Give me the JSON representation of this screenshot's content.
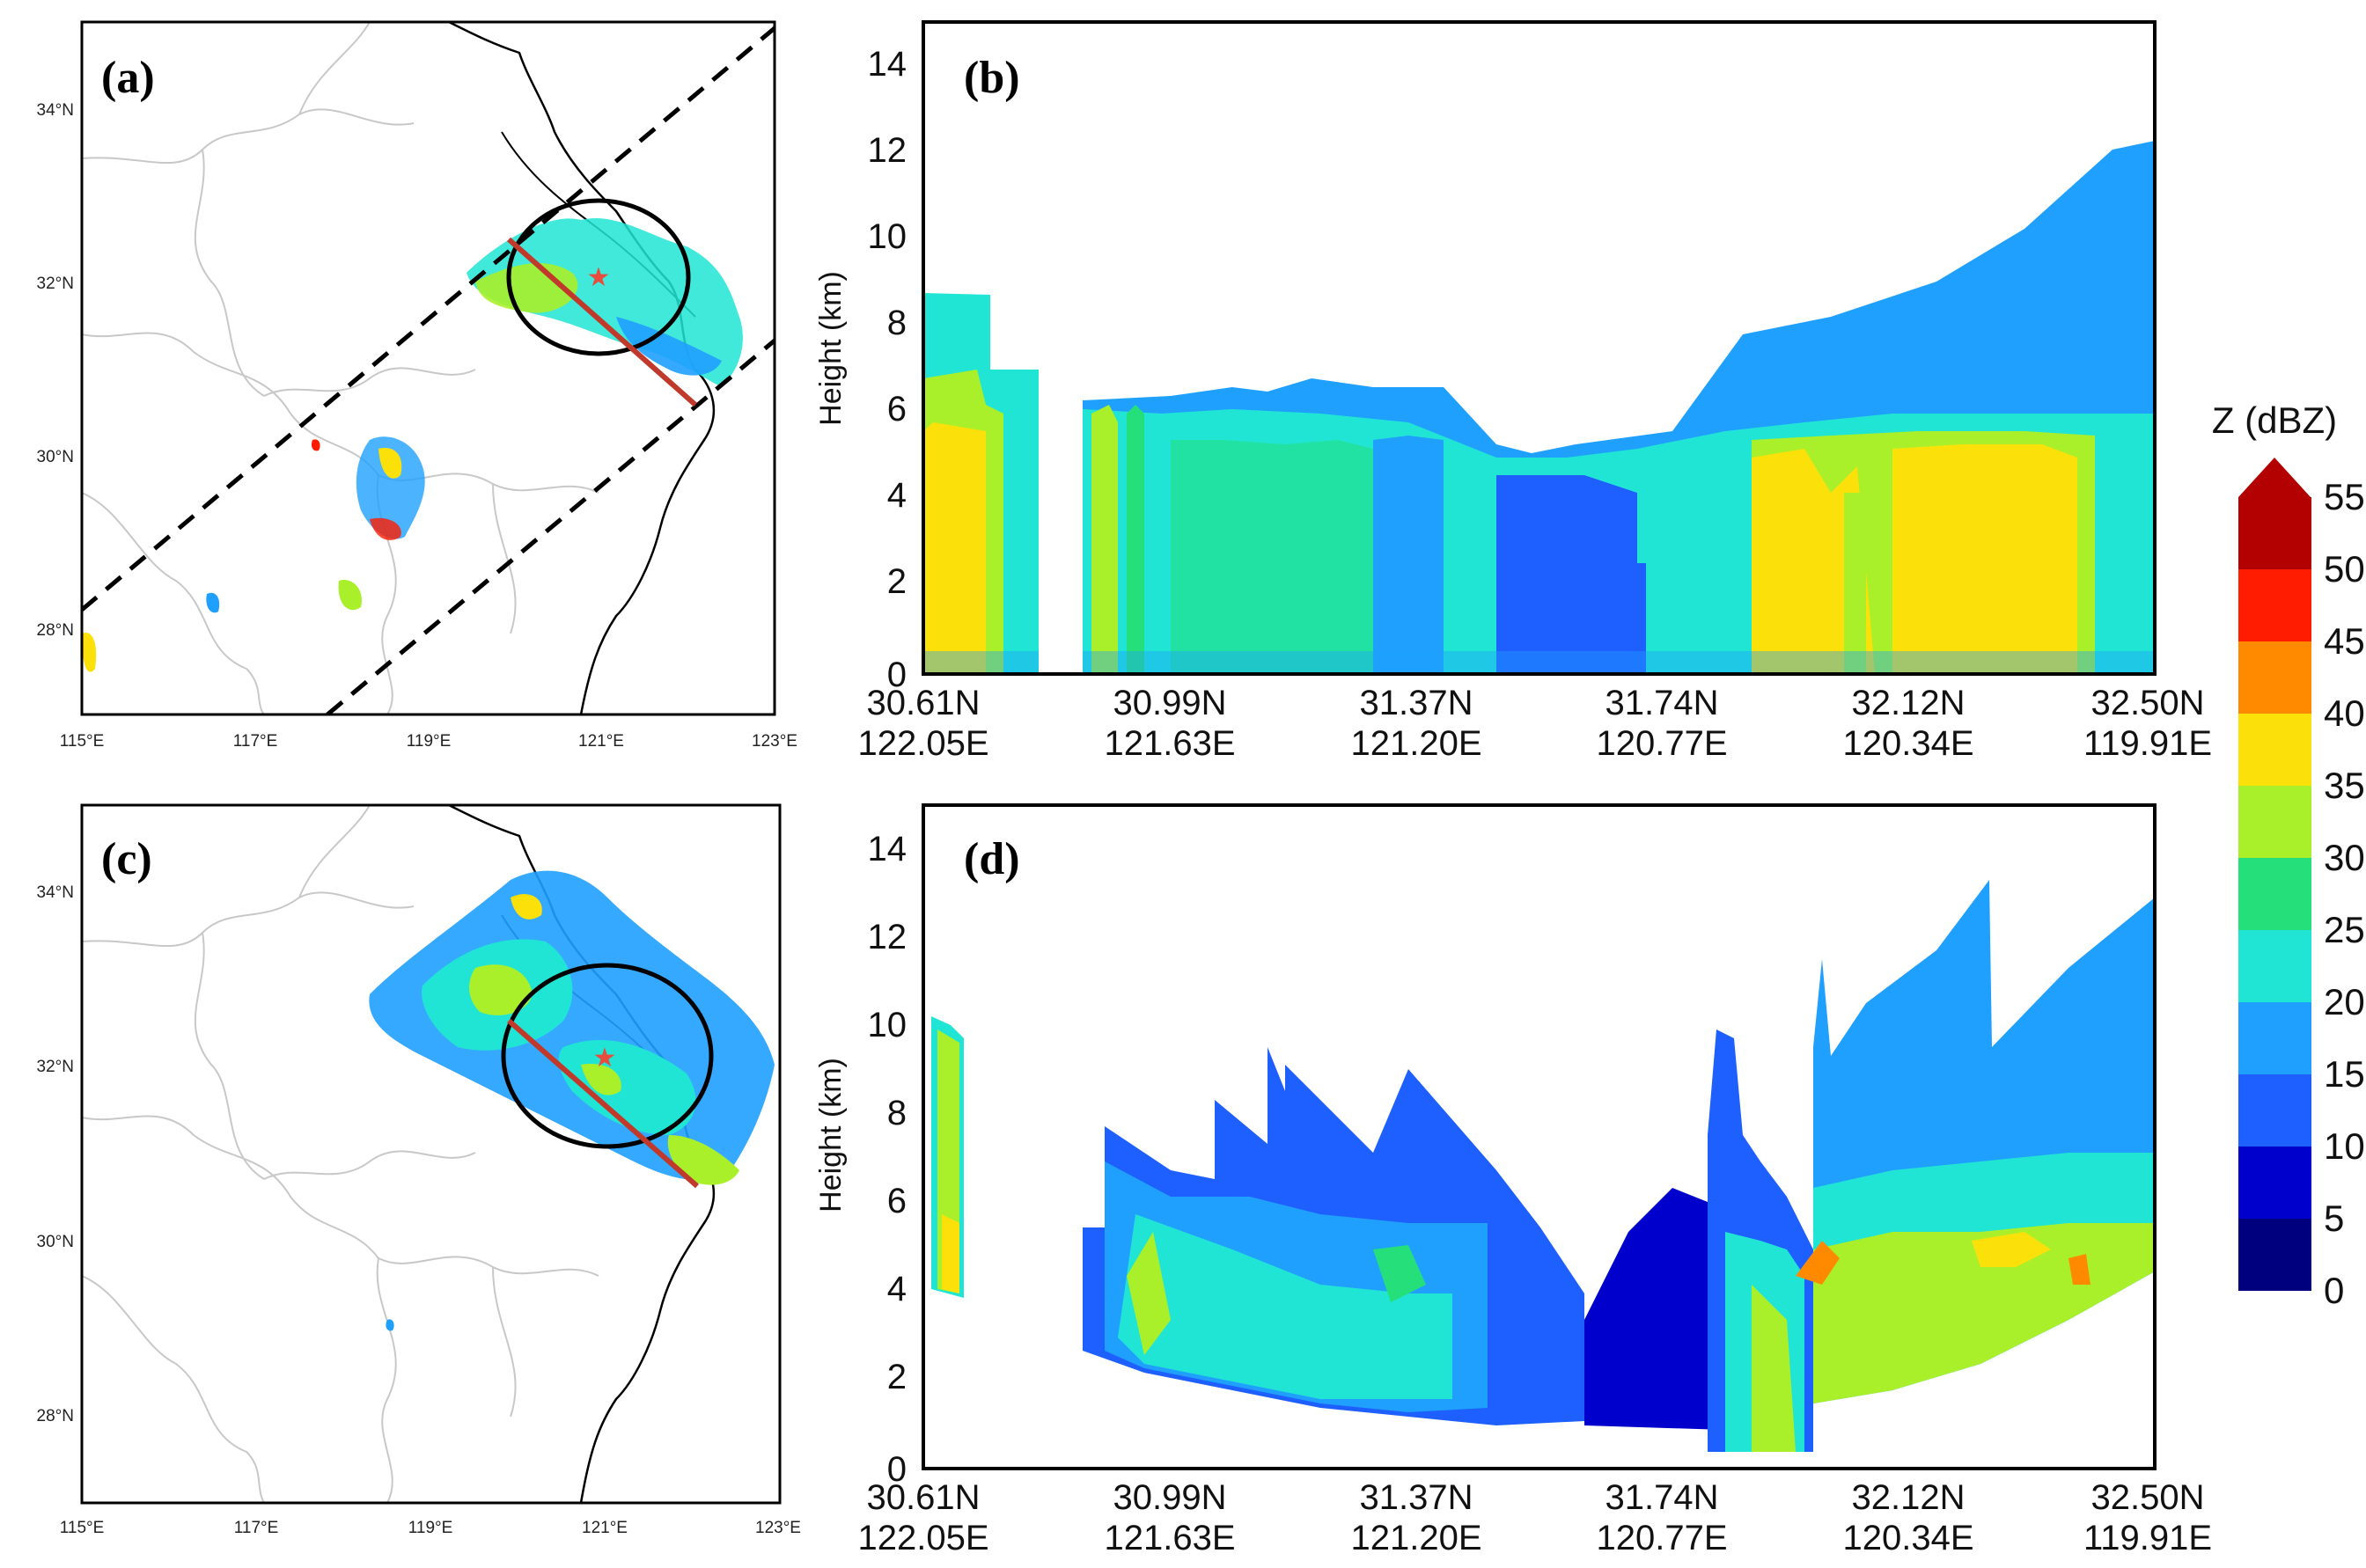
{
  "panels": {
    "a": {
      "letter": "(a)",
      "lon_ticks": [
        "115°E",
        "117°E",
        "119°E",
        "121°E",
        "123°E"
      ],
      "lat_ticks": [
        "34°N",
        "32°N",
        "30°N",
        "28°N"
      ]
    },
    "b": {
      "letter": "(b)",
      "ylabel": "Height (km)",
      "y_ticks": [
        "14",
        "12",
        "10",
        "8",
        "6",
        "4",
        "2",
        "0"
      ],
      "x_ticks": [
        {
          "lat": "30.61N",
          "lon": "122.05E"
        },
        {
          "lat": "30.99N",
          "lon": "121.63E"
        },
        {
          "lat": "31.37N",
          "lon": "121.20E"
        },
        {
          "lat": "31.74N",
          "lon": "120.77E"
        },
        {
          "lat": "32.12N",
          "lon": "120.34E"
        },
        {
          "lat": "32.50N",
          "lon": "119.91E"
        }
      ]
    },
    "c": {
      "letter": "(c)",
      "lon_ticks": [
        "115°E",
        "117°E",
        "119°E",
        "121°E",
        "123°E"
      ],
      "lat_ticks": [
        "34°N",
        "32°N",
        "30°N",
        "28°N"
      ]
    },
    "d": {
      "letter": "(d)",
      "ylabel": "Height (km)",
      "y_ticks": [
        "14",
        "12",
        "10",
        "8",
        "6",
        "4",
        "2",
        "0"
      ],
      "x_ticks": [
        {
          "lat": "30.61N",
          "lon": "122.05E"
        },
        {
          "lat": "30.99N",
          "lon": "121.63E"
        },
        {
          "lat": "31.37N",
          "lon": "121.20E"
        },
        {
          "lat": "31.74N",
          "lon": "120.77E"
        },
        {
          "lat": "32.12N",
          "lon": "120.34E"
        },
        {
          "lat": "32.50N",
          "lon": "119.91E"
        }
      ]
    }
  },
  "colorbar": {
    "title": "Z (dBZ)",
    "ticks": [
      "55",
      "50",
      "45",
      "40",
      "35",
      "30",
      "25",
      "20",
      "15",
      "10",
      "5",
      "0"
    ],
    "colors": [
      "#00007f",
      "#0000cd",
      "#1e5fff",
      "#1fa0ff",
      "#20e5d4",
      "#25e07a",
      "#a9f02a",
      "#fce00a",
      "#ff8a00",
      "#ff1c00",
      "#b30000"
    ]
  }
}
